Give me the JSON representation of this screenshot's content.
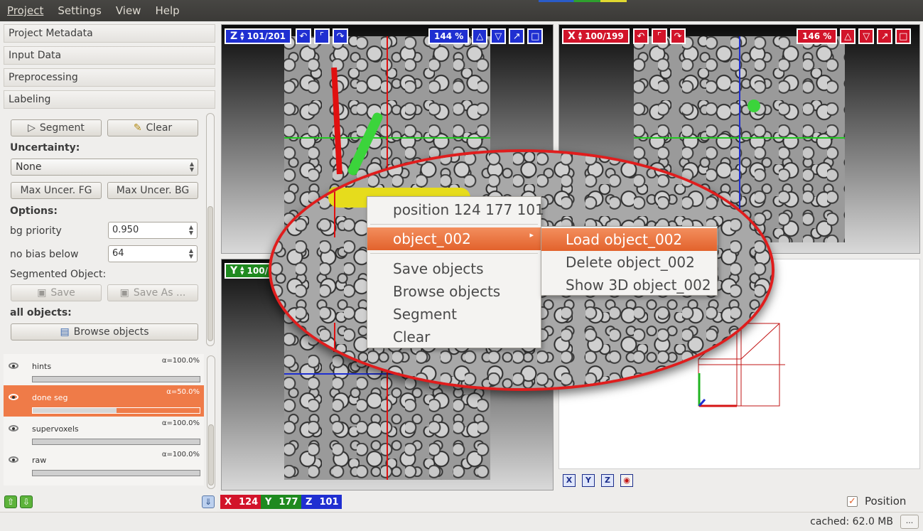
{
  "menubar": {
    "items": [
      "Project",
      "Settings",
      "View",
      "Help"
    ]
  },
  "sidebar": {
    "sections": [
      "Project Metadata",
      "Input Data",
      "Preprocessing",
      "Labeling"
    ],
    "segment_label": "Segment",
    "clear_label": "Clear",
    "uncertainty_label": "Uncertainty:",
    "uncertainty_value": "None",
    "max_uncer_fg": "Max Uncer. FG",
    "max_uncer_bg": "Max Uncer. BG",
    "options_label": "Options:",
    "bg_priority_label": "bg priority",
    "bg_priority_value": "0.950",
    "no_bias_label": "no bias below",
    "no_bias_value": "64",
    "segmented_object_label": "Segmented Object:",
    "save_label": "Save",
    "save_as_label": "Save As ...",
    "all_objects_label": "all objects:",
    "browse_objects_label": "Browse objects"
  },
  "layers": [
    {
      "name": "hints",
      "alpha": "α=100.0%",
      "opacity": 1.0,
      "selected": false
    },
    {
      "name": "done seg",
      "alpha": "α=50.0%",
      "opacity": 0.5,
      "selected": true
    },
    {
      "name": "supervoxels",
      "alpha": "α=100.0%",
      "opacity": 1.0,
      "selected": false
    },
    {
      "name": "raw",
      "alpha": "α=100.0%",
      "opacity": 1.0,
      "selected": false
    }
  ],
  "views": {
    "z": {
      "axis": "Z",
      "slice": "101/201",
      "zoom": "144 %"
    },
    "x": {
      "axis": "X",
      "slice": "100/199",
      "zoom": "146 %"
    },
    "y": {
      "axis": "Y",
      "slice": "100/"
    }
  },
  "coords": {
    "x_label": "X",
    "x": "124",
    "y_label": "Y",
    "y": "177",
    "z_label": "Z",
    "z": "101"
  },
  "view3d_buttons": [
    "X",
    "Y",
    "Z"
  ],
  "context_menu": {
    "position": "position 124 177 101",
    "object": "object_002",
    "items": [
      "Save objects",
      "Browse objects",
      "Segment",
      "Clear"
    ],
    "submenu": [
      "Load object_002",
      "Delete object_002",
      "Show 3D object_002"
    ]
  },
  "status": {
    "position_label": "Position",
    "cached": "cached: 62.0 MB",
    "more": "..."
  },
  "colors": {
    "accent": "#ef7b48",
    "x_axis": "#d2142a",
    "y_axis": "#1f8a1f",
    "z_axis": "#1f2fd1"
  }
}
